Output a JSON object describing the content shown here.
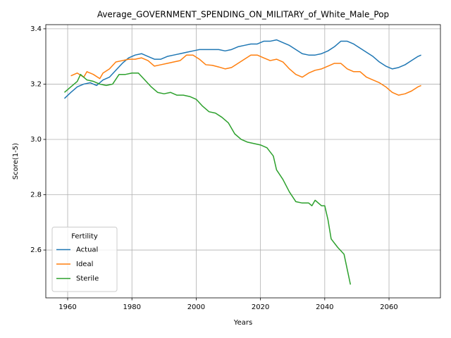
{
  "chart_data": {
    "type": "line",
    "title": "Average_GOVERNMENT_SPENDING_ON_MILITARY_of_White_Male_Pop",
    "x_label": "Years",
    "y_label": "Score(1-5)",
    "legend_title": "Fertility",
    "legend_loc": "lower left",
    "grid": true,
    "xlim": [
      1953.2,
      2076
    ],
    "ylim": [
      2.427,
      3.415
    ],
    "xticks": [
      1960,
      1980,
      2000,
      2020,
      2040,
      2060
    ],
    "yticks": [
      2.6,
      2.8,
      {
        "value": 3.0,
        "label": "3.0"
      },
      3.2,
      3.4
    ],
    "series": [
      {
        "name": "Actual",
        "color": "#1f77b4",
        "x": [
          1959,
          1961,
          1963,
          1965,
          1967,
          1969,
          1971,
          1973,
          1975,
          1977,
          1979,
          1981,
          1983,
          1985,
          1987,
          1989,
          1991,
          1993,
          1995,
          1997,
          1999,
          2001,
          2003,
          2005,
          2007,
          2009,
          2011,
          2013,
          2015,
          2017,
          2019,
          2021,
          2023,
          2025,
          2027,
          2029,
          2031,
          2033,
          2035,
          2037,
          2039,
          2041,
          2043,
          2045,
          2047,
          2049,
          2051,
          2053,
          2055,
          2057,
          2059,
          2061,
          2063,
          2065,
          2067,
          2069,
          2070
        ],
        "values": [
          3.148,
          3.17,
          3.19,
          3.2,
          3.205,
          3.195,
          3.215,
          3.225,
          3.25,
          3.275,
          3.295,
          3.305,
          3.31,
          3.3,
          3.29,
          3.29,
          3.3,
          3.305,
          3.31,
          3.315,
          3.32,
          3.325,
          3.325,
          3.325,
          3.325,
          3.32,
          3.325,
          3.335,
          3.34,
          3.345,
          3.345,
          3.355,
          3.355,
          3.36,
          3.35,
          3.34,
          3.325,
          3.31,
          3.305,
          3.305,
          3.31,
          3.32,
          3.335,
          3.355,
          3.355,
          3.345,
          3.33,
          3.315,
          3.3,
          3.28,
          3.265,
          3.255,
          3.26,
          3.27,
          3.285,
          3.3,
          3.305
        ]
      },
      {
        "name": "Ideal",
        "color": "#ff7f0e",
        "x": [
          1961,
          1963,
          1965,
          1966,
          1968,
          1970,
          1971,
          1973,
          1975,
          1977,
          1979,
          1981,
          1983,
          1985,
          1987,
          1989,
          1991,
          1993,
          1995,
          1997,
          1999,
          2001,
          2003,
          2005,
          2007,
          2009,
          2011,
          2013,
          2015,
          2017,
          2019,
          2021,
          2023,
          2025,
          2027,
          2029,
          2031,
          2033,
          2035,
          2037,
          2039,
          2041,
          2043,
          2045,
          2047,
          2049,
          2051,
          2053,
          2055,
          2057,
          2059,
          2061,
          2063,
          2065,
          2067,
          2069,
          2070
        ],
        "values": [
          3.23,
          3.24,
          3.225,
          3.245,
          3.235,
          3.22,
          3.24,
          3.255,
          3.28,
          3.285,
          3.29,
          3.29,
          3.295,
          3.285,
          3.265,
          3.27,
          3.275,
          3.28,
          3.285,
          3.305,
          3.305,
          3.29,
          3.27,
          3.268,
          3.262,
          3.255,
          3.26,
          3.275,
          3.29,
          3.305,
          3.305,
          3.295,
          3.285,
          3.29,
          3.28,
          3.255,
          3.235,
          3.225,
          3.24,
          3.25,
          3.255,
          3.265,
          3.275,
          3.275,
          3.255,
          3.245,
          3.245,
          3.225,
          3.215,
          3.205,
          3.19,
          3.17,
          3.16,
          3.165,
          3.175,
          3.19,
          3.195
        ]
      },
      {
        "name": "Sterile",
        "color": "#2ca02c",
        "x": [
          1959,
          1961,
          1963,
          1964,
          1966,
          1968,
          1970,
          1972,
          1974,
          1976,
          1978,
          1980,
          1982,
          1984,
          1986,
          1988,
          1990,
          1992,
          1994,
          1996,
          1998,
          2000,
          2002,
          2004,
          2006,
          2008,
          2010,
          2012,
          2014,
          2016,
          2018,
          2020,
          2022,
          2024,
          2025,
          2027,
          2029,
          2031,
          2033,
          2035,
          2036,
          2037,
          2039,
          2040,
          2041,
          2042,
          2044,
          2046,
          2048
        ],
        "values": [
          3.17,
          3.19,
          3.21,
          3.235,
          3.215,
          3.21,
          3.2,
          3.195,
          3.2,
          3.235,
          3.235,
          3.24,
          3.24,
          3.215,
          3.19,
          3.17,
          3.165,
          3.17,
          3.16,
          3.16,
          3.155,
          3.145,
          3.12,
          3.1,
          3.095,
          3.08,
          3.06,
          3.02,
          3.0,
          2.99,
          2.985,
          2.98,
          2.97,
          2.94,
          2.89,
          2.855,
          2.81,
          2.775,
          2.77,
          2.77,
          2.76,
          2.78,
          2.76,
          2.76,
          2.71,
          2.64,
          2.61,
          2.585,
          2.475
        ]
      }
    ]
  }
}
